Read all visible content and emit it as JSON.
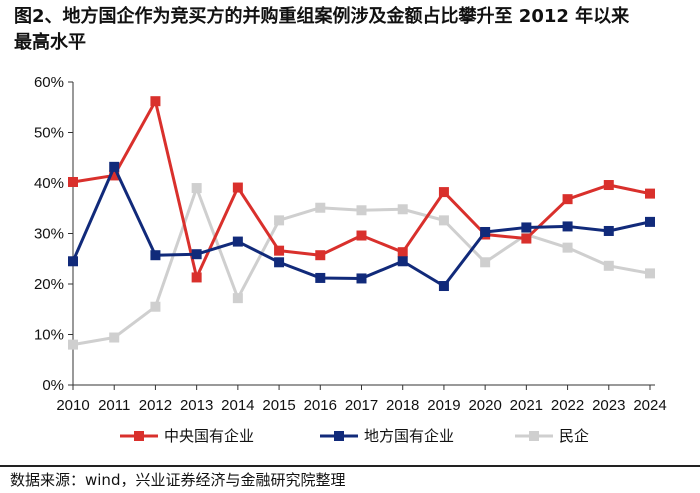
{
  "title": {
    "line1": "图2、地方国企作为竞买方的并购重组案例涉及金额占比攀升至 2012 年以来",
    "line2": "最高水平"
  },
  "source": "数据来源：wind，兴业证券经济与金融研究院整理",
  "chart_data": {
    "type": "line",
    "x": [
      "2010",
      "2011",
      "2012",
      "2013",
      "2014",
      "2015",
      "2016",
      "2017",
      "2018",
      "2019",
      "2020",
      "2021",
      "2022",
      "2023",
      "2024"
    ],
    "ylim": [
      0,
      60
    ],
    "yticks": [
      "0%",
      "10%",
      "20%",
      "30%",
      "40%",
      "50%",
      "60%"
    ],
    "ytick_values": [
      0,
      10,
      20,
      30,
      40,
      50,
      60
    ],
    "grid": false,
    "legend_position": "bottom",
    "series": [
      {
        "name": "中央国有企业",
        "color": "#d9302c",
        "values": [
          40.2,
          41.5,
          56.2,
          21.3,
          39.1,
          26.6,
          25.7,
          29.6,
          26.3,
          38.2,
          29.8,
          29.0,
          36.8,
          39.6,
          37.9
        ]
      },
      {
        "name": "地方国有企业",
        "color": "#112a7a",
        "values": [
          24.5,
          43.2,
          25.7,
          25.9,
          28.4,
          24.3,
          21.2,
          21.1,
          24.5,
          19.6,
          30.3,
          31.2,
          31.4,
          30.5,
          32.3
        ]
      },
      {
        "name": "民企",
        "color": "#cfcfcf",
        "values": [
          8.0,
          9.4,
          15.5,
          39.0,
          17.2,
          32.6,
          35.1,
          34.6,
          34.8,
          32.6,
          24.3,
          29.8,
          27.2,
          23.6,
          22.1
        ]
      }
    ]
  }
}
